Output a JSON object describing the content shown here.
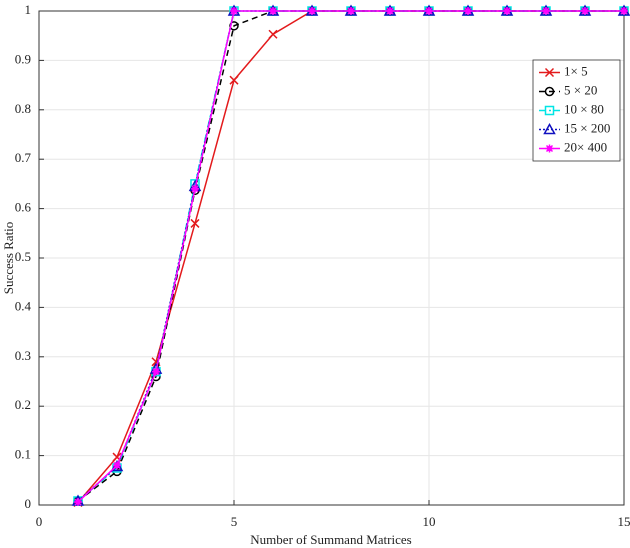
{
  "chart_data": {
    "type": "line",
    "xlabel": "Number of Summand Matrices",
    "ylabel": "Success Ratio",
    "x": [
      1,
      2,
      3,
      4,
      5,
      6,
      7,
      8,
      9,
      10,
      11,
      12,
      13,
      14,
      15
    ],
    "series": [
      {
        "name": "1× 5",
        "color": "#e31a1c",
        "marker": "x",
        "linestyle": "solid",
        "values": [
          0.005,
          0.097,
          0.29,
          0.57,
          0.86,
          0.953,
          1,
          1,
          1,
          1,
          1,
          1,
          1,
          1,
          1
        ]
      },
      {
        "name": "5 × 20",
        "color": "#000000",
        "marker": "o",
        "linestyle": "dashed",
        "values": [
          0.008,
          0.068,
          0.26,
          0.637,
          0.97,
          1,
          1,
          1,
          1,
          1,
          1,
          1,
          1,
          1,
          1
        ]
      },
      {
        "name": "10 × 80",
        "color": "#00e5e5",
        "marker": "s",
        "linestyle": "dashdot",
        "values": [
          0.008,
          0.075,
          0.27,
          0.65,
          1,
          1,
          1,
          1,
          1,
          1,
          1,
          1,
          1,
          1,
          1
        ]
      },
      {
        "name": "15 × 200",
        "color": "#1010c0",
        "marker": "^",
        "linestyle": "dotted",
        "values": [
          0.008,
          0.078,
          0.275,
          0.645,
          1,
          1,
          1,
          1,
          1,
          1,
          1,
          1,
          1,
          1,
          1
        ]
      },
      {
        "name": "20× 400",
        "color": "#ff00ff",
        "marker": "*",
        "linestyle": "solid",
        "values": [
          0.006,
          0.08,
          0.27,
          0.64,
          1,
          1,
          1,
          1,
          1,
          1,
          1,
          1,
          1,
          1,
          1
        ]
      }
    ],
    "xlim": [
      0,
      15
    ],
    "xticks": [
      0,
      5,
      10,
      15
    ],
    "ylim": [
      0,
      1
    ],
    "yticks": [
      0,
      0.1,
      0.2,
      0.3,
      0.4,
      0.5,
      0.6,
      0.7,
      0.8,
      0.9,
      1
    ],
    "grid": true,
    "legend": "upper right"
  }
}
